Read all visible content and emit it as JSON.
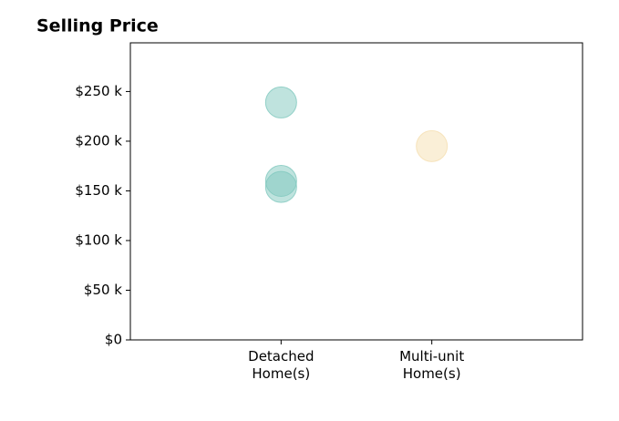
{
  "chart_data": {
    "type": "strip",
    "title": "Selling Price",
    "groups": [
      {
        "category": "Detached\nHome(s)",
        "color": "#80c8be",
        "values": [
          239,
          160,
          154
        ]
      },
      {
        "category": "Multi-unit\nHome(s)",
        "color": "#f5dfb0",
        "values": [
          195
        ]
      }
    ],
    "ylim": [
      0,
      299
    ],
    "yticks": [
      {
        "value": 0,
        "label": "$0"
      },
      {
        "value": 50,
        "label": "$50 k"
      },
      {
        "value": 100,
        "label": "$100 k"
      },
      {
        "value": 150,
        "label": "$150 k"
      },
      {
        "value": 200,
        "label": "$200 k"
      },
      {
        "value": 250,
        "label": "$250 k"
      }
    ]
  }
}
